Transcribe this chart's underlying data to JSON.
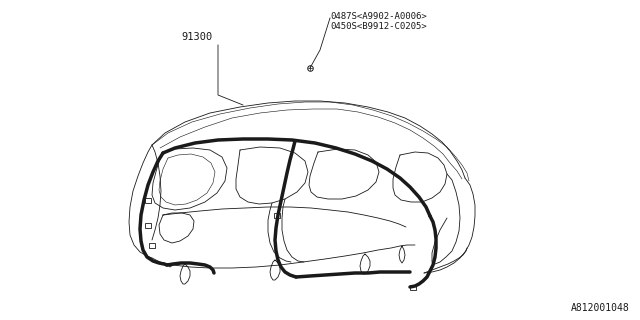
{
  "bg_color": "#ffffff",
  "diagram_id": "A812001048",
  "part_label_91300": "91300",
  "part_label_0487S": "0487S<A9902-A0006>",
  "part_label_0450S": "0450S<B9912-C0205>",
  "line_color": "#1a1a1a",
  "lw_thin": 0.6,
  "lw_thick": 2.5,
  "annotation_fontsize": 6.5,
  "diagram_id_fontsize": 7
}
